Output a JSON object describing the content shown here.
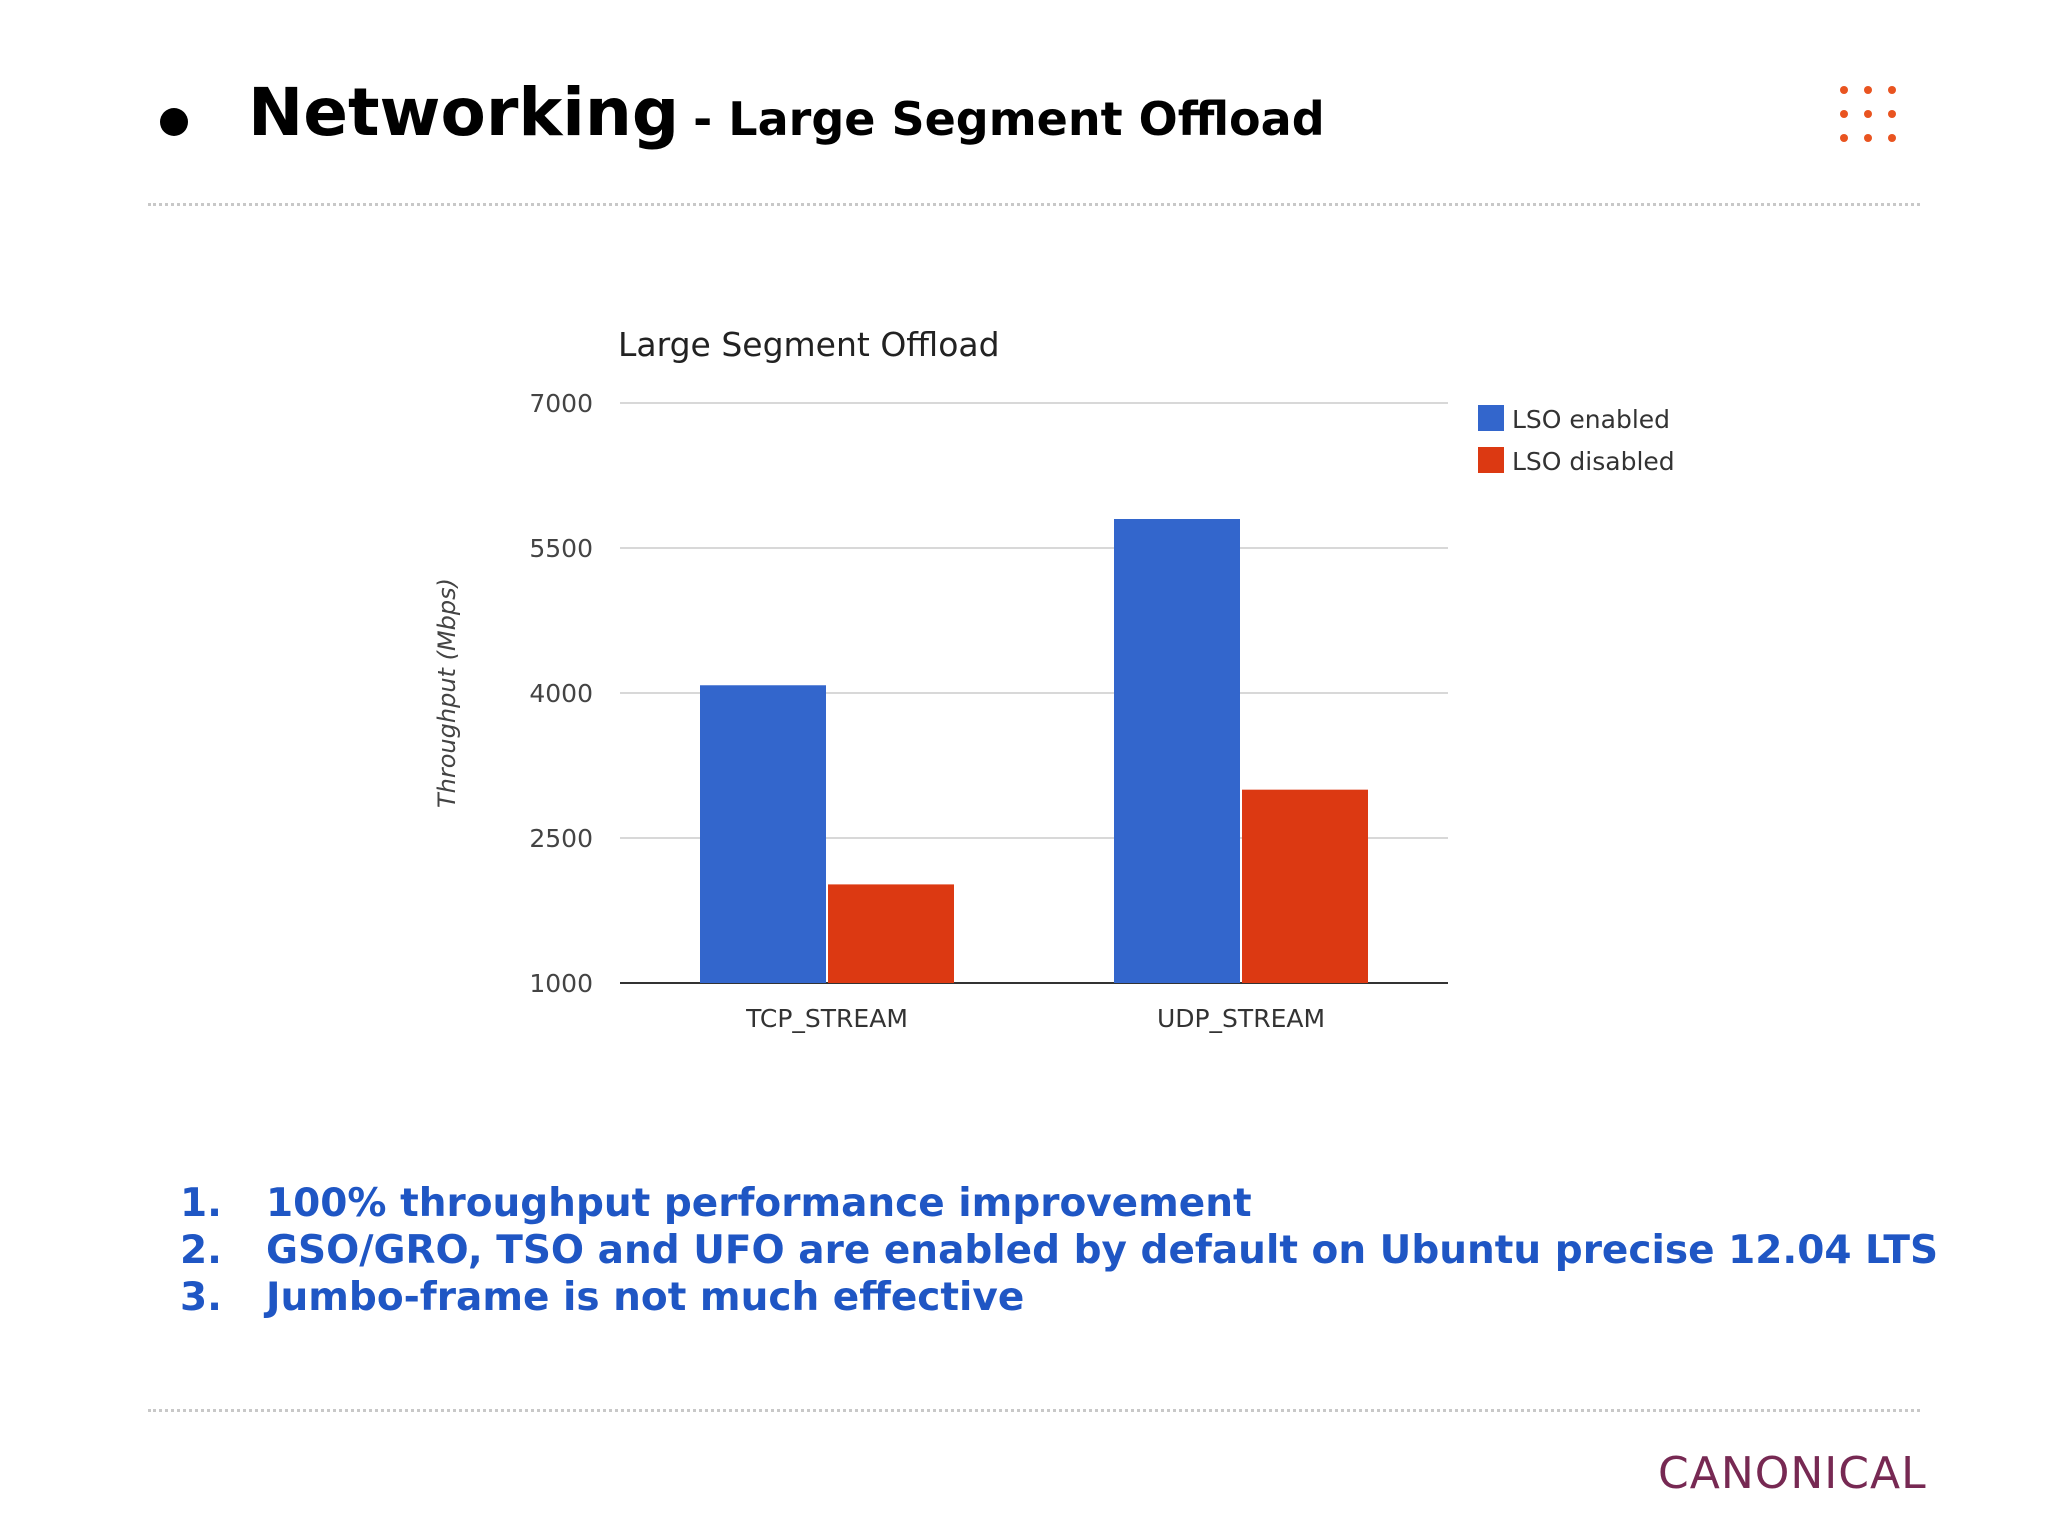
{
  "header": {
    "title": "Networking",
    "subtitle": "- Large Segment Offload"
  },
  "colors": {
    "accent": "#e95420",
    "series_blue": "#3366cc",
    "series_red": "#dc3912",
    "points_text": "#1f56c4",
    "logo": "#772953"
  },
  "chart_data": {
    "type": "bar",
    "title": "Large Segment Offload",
    "ylabel": "Throughput (Mbps)",
    "xlabel": "",
    "categories": [
      "TCP_STREAM",
      "UDP_STREAM"
    ],
    "series": [
      {
        "name": "LSO enabled",
        "values": [
          4080,
          5800
        ],
        "color": "#3366cc"
      },
      {
        "name": "LSO disabled",
        "values": [
          2020,
          3000
        ],
        "color": "#dc3912"
      }
    ],
    "ylim": [
      1000,
      7000
    ],
    "yticks": [
      "7000",
      "5500",
      "4000",
      "2500",
      "1000"
    ],
    "grid": true,
    "legend": "top-right"
  },
  "points": [
    {
      "num": "1.",
      "text": "100% throughput performance improvement"
    },
    {
      "num": "2.",
      "text": "GSO/GRO, TSO and UFO are enabled by default on Ubuntu precise 12.04 LTS"
    },
    {
      "num": "3.",
      "text": "Jumbo-frame is not much effective"
    }
  ],
  "logo": {
    "text": "CANONICAL"
  }
}
